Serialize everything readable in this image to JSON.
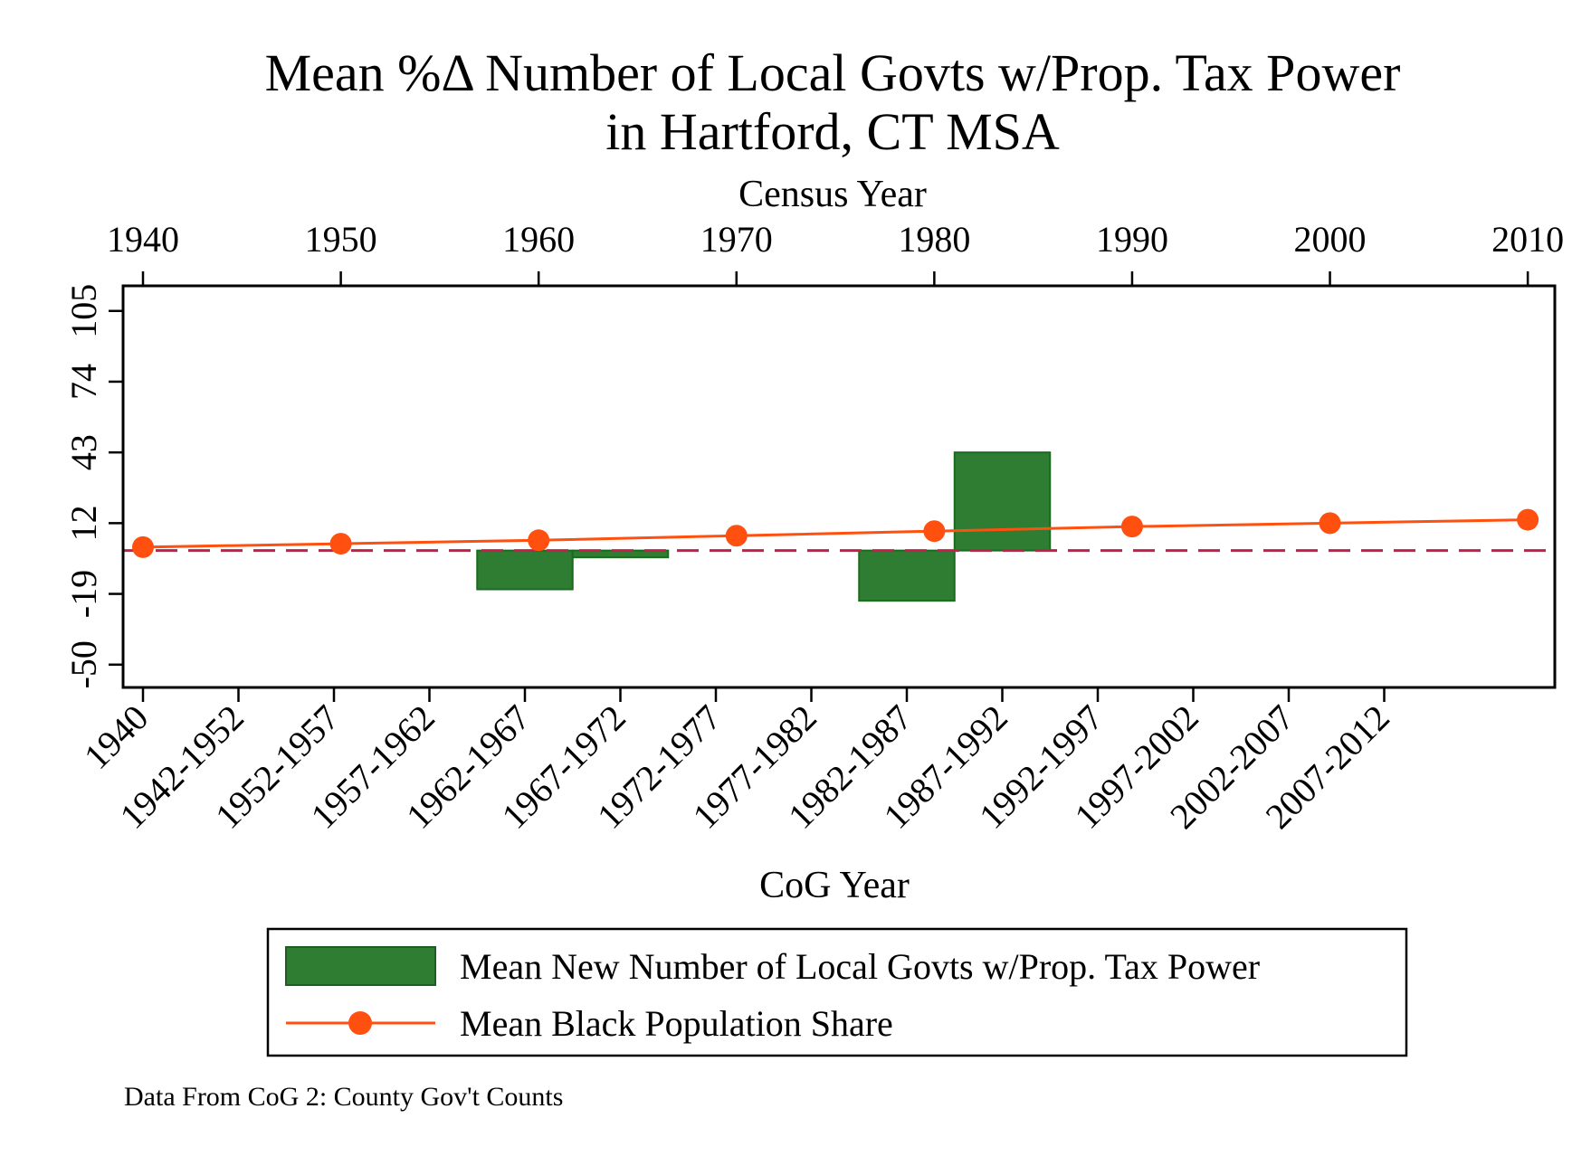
{
  "chart_data": {
    "type": "bar",
    "title_lines": [
      "Mean %Δ Number of Local Govts w/Prop. Tax Power",
      "in Hartford, CT MSA"
    ],
    "top_axis": {
      "label": "Census Year",
      "ticks": [
        "1940",
        "1950",
        "1960",
        "1970",
        "1980",
        "1990",
        "2000",
        "2010"
      ],
      "range": [
        1940,
        2011
      ]
    },
    "bottom_axis": {
      "label": "CoG Year",
      "categories": [
        "1940",
        "1942-1952",
        "1952-1957",
        "1957-1962",
        "1962-1967",
        "1967-1972",
        "1972-1977",
        "1977-1982",
        "1982-1987",
        "1987-1992",
        "1992-1997",
        "1997-2002",
        "2002-2007",
        "2007-2012"
      ]
    },
    "y_axis": {
      "label": "",
      "ticks": [
        "-50",
        "-19",
        "12",
        "43",
        "74",
        "105"
      ],
      "range": [
        -60,
        116
      ]
    },
    "reference_line": 0,
    "bars": {
      "name": "Mean New Number of Local Govts w/Prop. Tax Power",
      "color": "#2e7d32",
      "values": [
        {
          "category": "1962-1967",
          "value": -17
        },
        {
          "category": "1967-1972",
          "value": -3
        },
        {
          "category": "1982-1987",
          "value": -22
        },
        {
          "category": "1987-1992",
          "value": 43
        }
      ]
    },
    "line": {
      "name": "Mean Black Population Share",
      "color": "#ff5010",
      "points": [
        {
          "year": 1940,
          "value": 1.5
        },
        {
          "year": 1950,
          "value": 3
        },
        {
          "year": 1960,
          "value": 4.5
        },
        {
          "year": 1970,
          "value": 6.5
        },
        {
          "year": 1980,
          "value": 8.5
        },
        {
          "year": 1990,
          "value": 10.5
        },
        {
          "year": 2000,
          "value": 12
        },
        {
          "year": 2010,
          "value": 13.5
        }
      ]
    },
    "legend_position": "bottom",
    "note": "Data From CoG 2: County Gov't Counts"
  }
}
